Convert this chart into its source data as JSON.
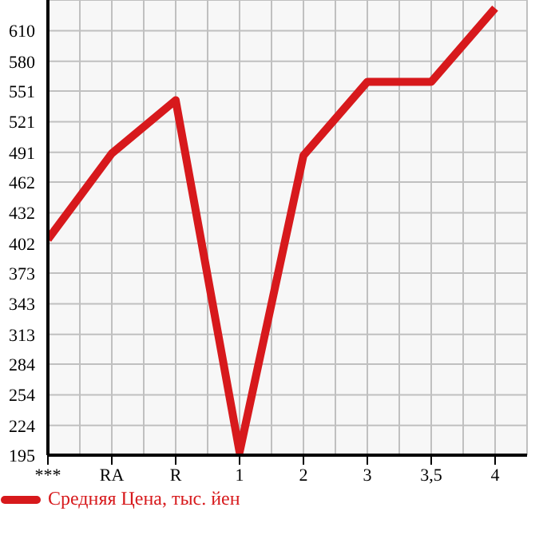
{
  "chart_data": {
    "type": "line",
    "categories": [
      "***",
      "RA",
      "R",
      "1",
      "2",
      "3",
      "3,5",
      "4"
    ],
    "series": [
      {
        "name": "Средняя Цена, тыс. йен",
        "color": "#d7191c",
        "values": [
          406,
          490,
          542,
          198,
          488,
          560,
          560,
          632
        ]
      }
    ],
    "ylim": [
      195,
      640
    ],
    "yticks": [
      195,
      224,
      254,
      284,
      313,
      343,
      373,
      402,
      432,
      462,
      491,
      521,
      551,
      580,
      610
    ],
    "grid": true,
    "legend": "bottom left",
    "marker": "none"
  }
}
